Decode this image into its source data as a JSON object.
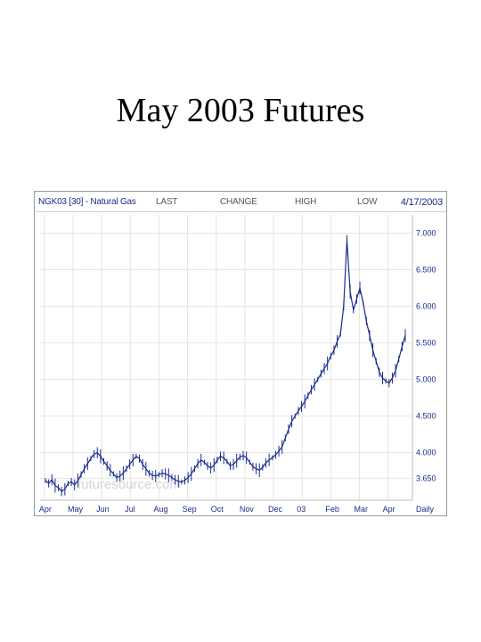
{
  "slide": {
    "title": "May 2003 Futures"
  },
  "chart_header": {
    "symbol": "NGK03 [30] - Natural Gas",
    "last_label": "LAST",
    "change_label": "CHANGE",
    "high_label": "HIGH",
    "low_label": "LOW",
    "date": "4/17/2003"
  },
  "watermark": "futuresource.com",
  "colors": {
    "series": "#1a2b8c",
    "grid": "#e4e4e4",
    "frame": "#9a9a9a",
    "text": "#1a2b8c"
  },
  "chart_data": {
    "type": "line",
    "title": "NGK03 [30] - Natural Gas",
    "xlabel": "",
    "ylabel": "",
    "x_ticks": [
      "Apr",
      "May",
      "Jun",
      "Jul",
      "Aug",
      "Sep",
      "Oct",
      "Nov",
      "Dec",
      "03",
      "Feb",
      "Mar",
      "Apr",
      "Daily"
    ],
    "y_ticks": [
      "3.650",
      "4.000",
      "4.500",
      "5.000",
      "5.500",
      "6.000",
      "6.500",
      "7.000"
    ],
    "ylim": [
      3.35,
      7.25
    ],
    "y_axis_side": "right",
    "grid": true,
    "series": [
      {
        "values": [
          3.62,
          3.58,
          3.63,
          3.55,
          3.52,
          3.47,
          3.5,
          3.58,
          3.6,
          3.56,
          3.62,
          3.7,
          3.78,
          3.85,
          3.92,
          3.98,
          4.0,
          3.95,
          3.88,
          3.82,
          3.76,
          3.71,
          3.66,
          3.68,
          3.72,
          3.78,
          3.84,
          3.9,
          3.95,
          3.92,
          3.84,
          3.78,
          3.72,
          3.69,
          3.68,
          3.7,
          3.72,
          3.71,
          3.69,
          3.66,
          3.63,
          3.61,
          3.6,
          3.62,
          3.66,
          3.71,
          3.78,
          3.85,
          3.9,
          3.87,
          3.82,
          3.79,
          3.83,
          3.9,
          3.95,
          3.93,
          3.88,
          3.82,
          3.84,
          3.89,
          3.94,
          3.96,
          3.93,
          3.87,
          3.81,
          3.78,
          3.76,
          3.8,
          3.86,
          3.9,
          3.93,
          3.97,
          4.02,
          4.08,
          4.2,
          4.32,
          4.43,
          4.5,
          4.57,
          4.63,
          4.7,
          4.78,
          4.86,
          4.93,
          5.0,
          5.08,
          5.15,
          5.22,
          5.32,
          5.4,
          5.52,
          5.62,
          6.0,
          6.9,
          6.2,
          5.95,
          6.1,
          6.25,
          6.05,
          5.8,
          5.6,
          5.4,
          5.25,
          5.1,
          5.02,
          4.98,
          4.95,
          5.02,
          5.12,
          5.28,
          5.45,
          5.6
        ]
      }
    ]
  }
}
